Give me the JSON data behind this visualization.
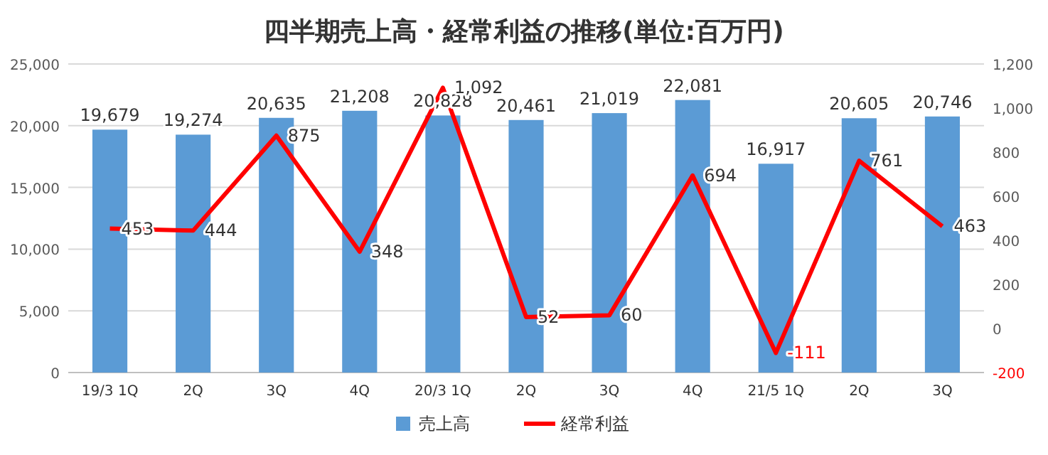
{
  "chart_data": {
    "type": "bar",
    "title": "四半期売上高・経常利益の推移(単位:百万円)",
    "categories": [
      "19/3 1Q",
      "2Q",
      "3Q",
      "4Q",
      "20/3 1Q",
      "2Q",
      "3Q",
      "4Q",
      "21/5 1Q",
      "2Q",
      "3Q"
    ],
    "series": [
      {
        "name": "売上高",
        "color": "#5b9bd5",
        "values": [
          19679,
          19274,
          20635,
          21208,
          20828,
          20461,
          21019,
          22081,
          16917,
          20605,
          20746
        ],
        "value_labels": [
          "19,679",
          "19,274",
          "20,635",
          "21,208",
          "20,828",
          "20,461",
          "21,019",
          "22,081",
          "16,917",
          "20,605",
          "20,746"
        ]
      },
      {
        "name": "経常利益",
        "type": "line",
        "axis": "y2",
        "color": "#ff0000",
        "values": [
          453,
          444,
          875,
          348,
          1092,
          52,
          60,
          694,
          -111,
          761,
          463
        ],
        "value_labels": [
          "453",
          "444",
          "875",
          "348",
          "1,092",
          "52",
          "60",
          "694",
          "-111",
          "761",
          "463"
        ]
      }
    ],
    "ylim": [
      0,
      25000
    ],
    "yticks": [
      0,
      {
        "value": 5000,
        "label": "5,000"
      },
      {
        "value": 10000,
        "label": "10,000"
      },
      {
        "value": 15000,
        "label": "15,000"
      },
      {
        "value": 20000,
        "label": "20,000"
      },
      {
        "value": 25000,
        "label": "25,000"
      }
    ],
    "y2lim": [
      -200,
      1200
    ],
    "y2ticks": [
      -200,
      0,
      200,
      400,
      600,
      800,
      {
        "value": 1000,
        "label": "1,000"
      },
      {
        "value": 1200,
        "label": "1,200"
      }
    ],
    "grid": "y",
    "legend": "bottom",
    "marker": "none",
    "line_style": "solid"
  }
}
